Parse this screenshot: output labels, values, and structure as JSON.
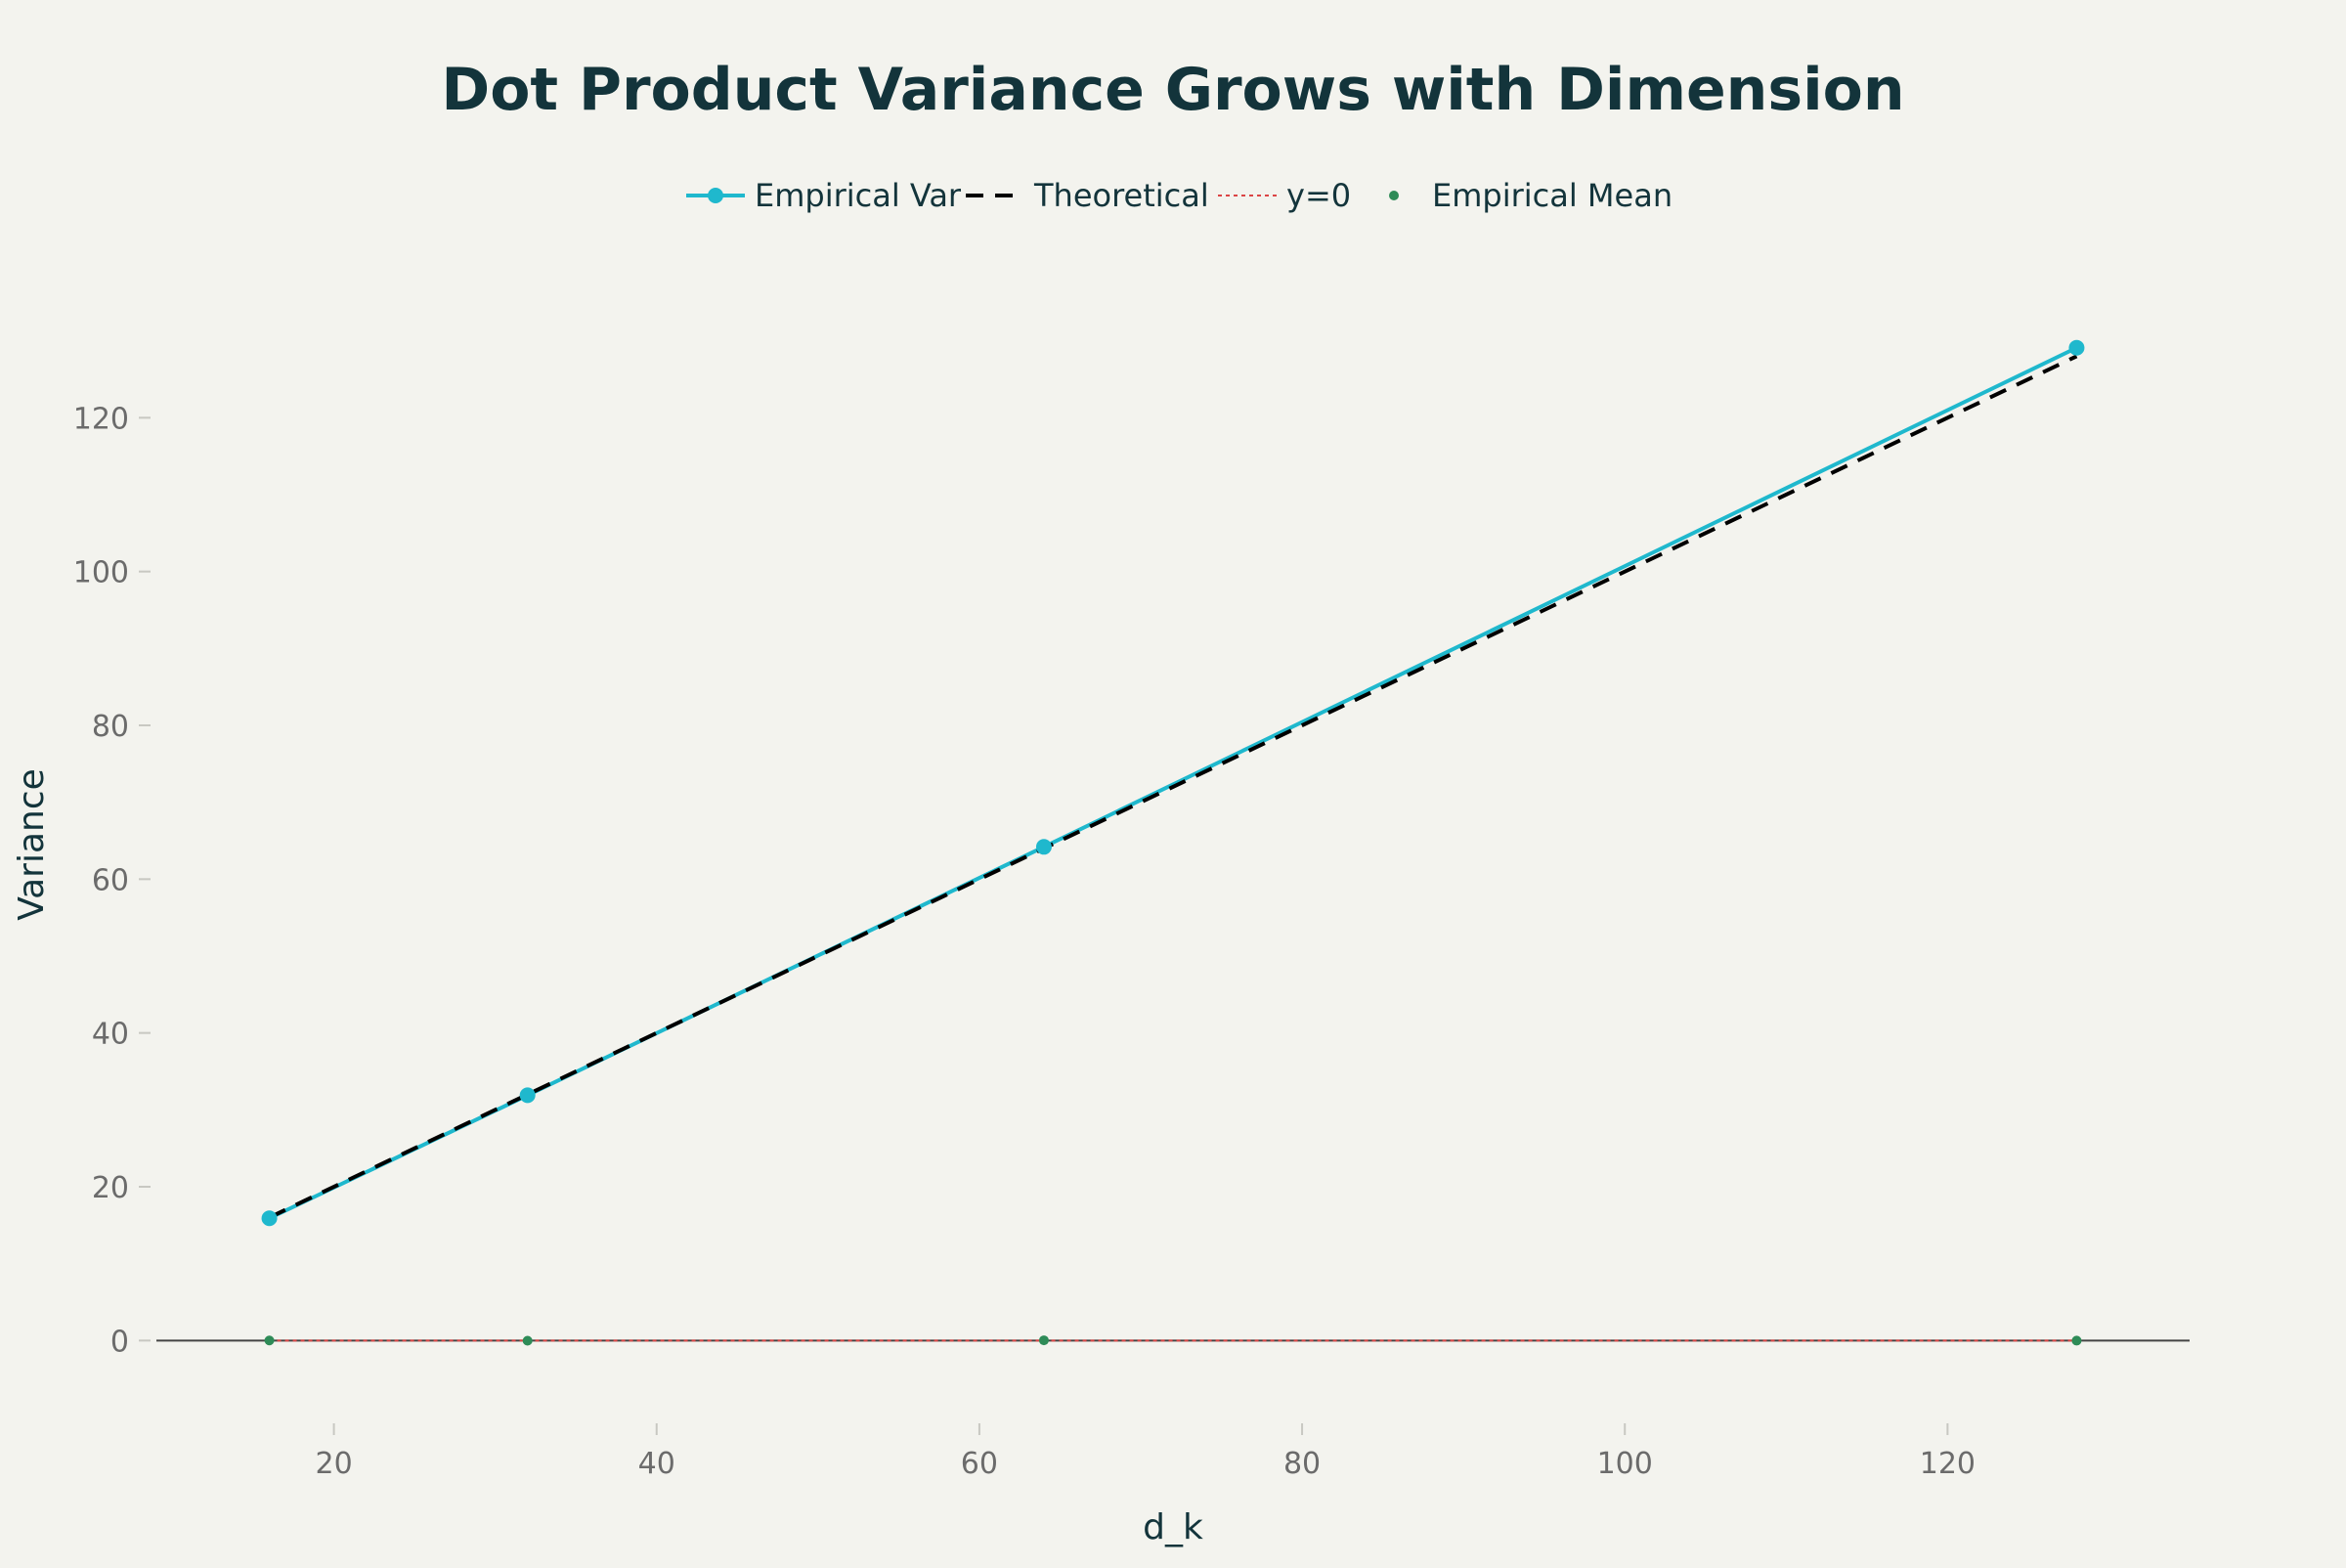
{
  "chart_data": {
    "type": "line",
    "title": "Dot Product Variance Grows with Dimension",
    "xlabel": "d_k",
    "ylabel": "Variance",
    "xlim": [
      9,
      135
    ],
    "ylim": [
      -10,
      140
    ],
    "x_ticks": [
      20,
      40,
      60,
      80,
      100,
      120
    ],
    "y_ticks": [
      0,
      20,
      40,
      60,
      80,
      100,
      120
    ],
    "x_tick_labels": [
      "20",
      "40",
      "60",
      "80",
      "100",
      "120"
    ],
    "y_tick_labels": [
      "0",
      "20",
      "40",
      "60",
      "80",
      "100",
      "120"
    ],
    "grid": false,
    "legend_position": "top-center",
    "x": [
      16,
      32,
      64,
      128
    ],
    "series": [
      {
        "name": "Empirical Var",
        "values": [
          15.9,
          31.9,
          64.2,
          129.1
        ],
        "color": "#1fb8cd",
        "style": "solid-markers"
      },
      {
        "name": "Theoretical",
        "values": [
          16,
          32,
          64,
          128
        ],
        "color": "#000000",
        "style": "dashed"
      },
      {
        "name": "y=0",
        "values": [
          0,
          0,
          0,
          0
        ],
        "color": "#db4545",
        "style": "dotted"
      },
      {
        "name": "Empirical Mean",
        "values": [
          0.01,
          -0.02,
          0.03,
          -0.01
        ],
        "color": "#2e8b57",
        "style": "markers"
      }
    ]
  }
}
